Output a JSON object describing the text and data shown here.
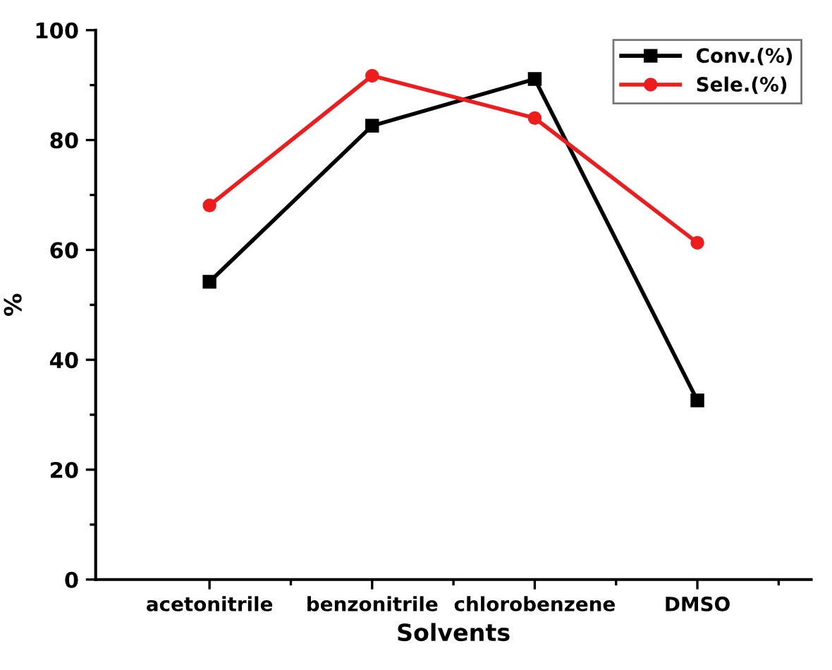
{
  "chart_data": {
    "type": "line",
    "xlabel": "Solvents",
    "ylabel": "%",
    "categories": [
      "acetonitrile",
      "benzonitrile",
      "chlorobenzene",
      "DMSO"
    ],
    "series": [
      {
        "name": "Conv.(%)",
        "color": "#000000",
        "marker": "square",
        "values": [
          54.2,
          82.6,
          91.1,
          32.6
        ]
      },
      {
        "name": "Sele.(%)",
        "color": "#ee1c1c",
        "marker": "circle",
        "values": [
          68.1,
          91.7,
          84.0,
          61.3
        ]
      }
    ],
    "ylim": [
      0,
      100
    ],
    "yticks": [
      0,
      20,
      40,
      60,
      80,
      100
    ],
    "grid": false,
    "legend": "top right",
    "line_style": "solid"
  }
}
